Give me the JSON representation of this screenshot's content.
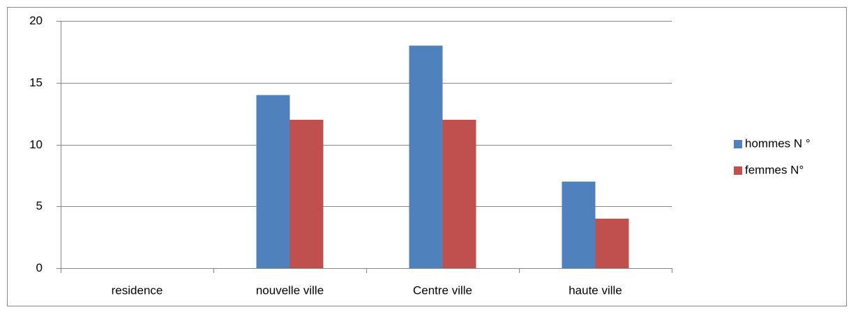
{
  "chart_data": {
    "type": "bar",
    "categories": [
      "residence",
      "nouvelle ville",
      "Centre ville",
      "haute ville"
    ],
    "series": [
      {
        "name": "hommes N °",
        "color": "#4f81bd",
        "values": [
          null,
          14,
          18,
          7
        ]
      },
      {
        "name": "femmes N°",
        "color": "#c0504d",
        "values": [
          null,
          12,
          12,
          4
        ]
      }
    ],
    "ylim": [
      0,
      20
    ],
    "yticks": [
      0,
      5,
      10,
      15,
      20
    ],
    "grid": true,
    "legend": "right"
  }
}
